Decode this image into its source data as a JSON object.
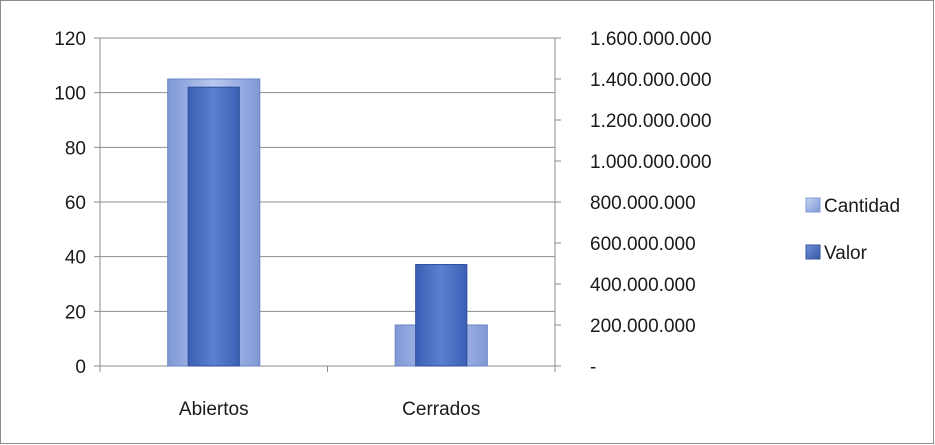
{
  "chart_data": {
    "type": "bar",
    "title": "",
    "categories": [
      "Abiertos",
      "Cerrados"
    ],
    "series": [
      {
        "name": "Cantidad",
        "axis": "left",
        "values": [
          105,
          15
        ],
        "color": "#9fb4e6"
      },
      {
        "name": "Valor",
        "axis": "right",
        "values": [
          1360000000,
          495000000
        ],
        "color": "#4f74c8"
      }
    ],
    "y_left": {
      "min": 0,
      "max": 120,
      "ticks": [
        0,
        20,
        40,
        60,
        80,
        100,
        120
      ],
      "tick_labels": [
        "0",
        "20",
        "40",
        "60",
        "80",
        "100",
        "120"
      ]
    },
    "y_right": {
      "min": 0,
      "max": 1600000000,
      "ticks": [
        0,
        200000000,
        400000000,
        600000000,
        800000000,
        1000000000,
        1200000000,
        1400000000,
        1600000000
      ],
      "tick_labels": [
        "-",
        "200.000.000",
        "400.000.000",
        "600.000.000",
        "800.000.000",
        "1.000.000.000",
        "1.200.000.000",
        "1.400.000.000",
        "1.600.000.000"
      ]
    },
    "grid": true,
    "legend": {
      "position": "right",
      "entries": [
        "Cantidad",
        "Valor"
      ]
    }
  }
}
